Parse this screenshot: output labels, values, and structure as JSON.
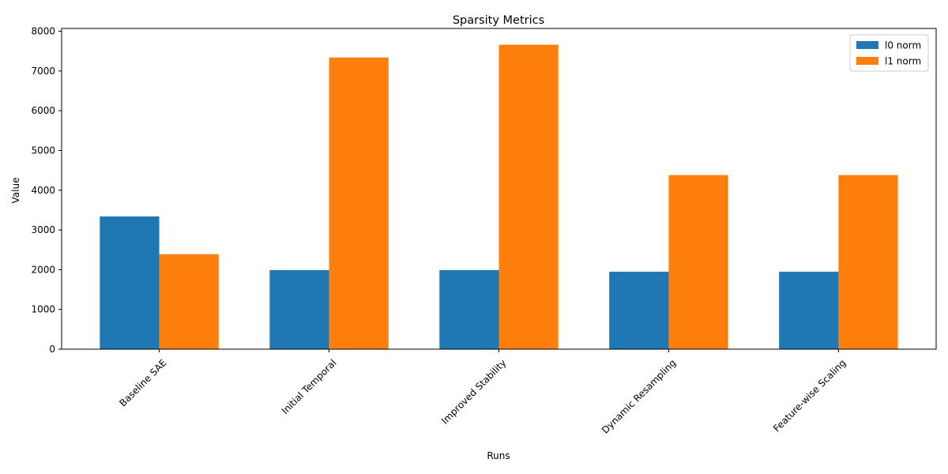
{
  "chart_data": {
    "type": "bar",
    "title": "Sparsity Metrics",
    "xlabel": "Runs",
    "ylabel": "Value",
    "categories": [
      "Baseline SAE",
      "Initial Temporal",
      "Improved Stability",
      "Dynamic Resampling",
      "Feature-wise Scaling"
    ],
    "series": [
      {
        "name": "l0 norm",
        "color": "#1f77b4",
        "values": [
          3340,
          1990,
          1990,
          1950,
          1950
        ]
      },
      {
        "name": "l1 norm",
        "color": "#ff7f0e",
        "values": [
          2390,
          7340,
          7660,
          4380,
          4380
        ]
      }
    ],
    "ylim": [
      0,
      8070
    ],
    "yticks": [
      0,
      1000,
      2000,
      3000,
      4000,
      5000,
      6000,
      7000,
      8000
    ],
    "grid": false,
    "legend_position": "top-right"
  }
}
